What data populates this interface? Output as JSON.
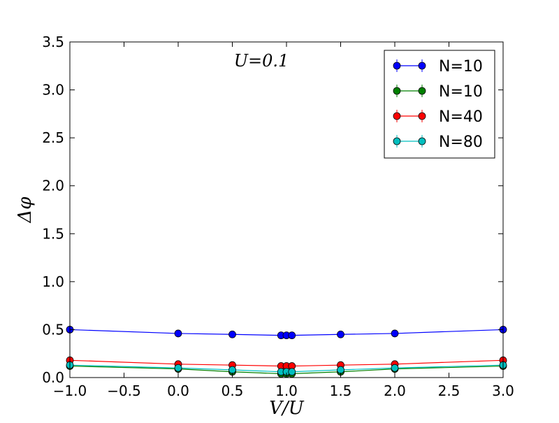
{
  "chart_data": {
    "type": "line",
    "xlabel": "V/U",
    "ylabel": "Δφ",
    "annotation": "U=0.1",
    "xlim": [
      -1.0,
      3.0
    ],
    "ylim": [
      0.0,
      3.5
    ],
    "x_ticks": [
      "−1.0",
      "−0.5",
      "0.0",
      "0.5",
      "1.0",
      "1.5",
      "2.0",
      "2.5",
      "3.0"
    ],
    "y_ticks": [
      "0.0",
      "0.5",
      "1.0",
      "1.5",
      "2.0",
      "2.5",
      "3.0",
      "3.5"
    ],
    "grid": false,
    "legend_position": "top-right",
    "x": [
      -1.0,
      0.0,
      0.5,
      0.95,
      1.0,
      1.05,
      1.5,
      2.0,
      3.0
    ],
    "series": [
      {
        "name": "N=10",
        "color": "#0000ff",
        "values": [
          0.5,
          0.46,
          0.45,
          0.44,
          0.44,
          0.44,
          0.45,
          0.46,
          0.5
        ]
      },
      {
        "name": "N=10",
        "color": "#008000",
        "values": [
          0.12,
          0.09,
          0.06,
          0.04,
          0.04,
          0.04,
          0.06,
          0.09,
          0.12
        ]
      },
      {
        "name": "N=40",
        "color": "#ff0000",
        "values": [
          0.18,
          0.14,
          0.13,
          0.12,
          0.12,
          0.12,
          0.13,
          0.14,
          0.18
        ]
      },
      {
        "name": "N=80",
        "color": "#00bfbf",
        "values": [
          0.13,
          0.1,
          0.08,
          0.06,
          0.06,
          0.06,
          0.08,
          0.1,
          0.13
        ]
      }
    ]
  }
}
